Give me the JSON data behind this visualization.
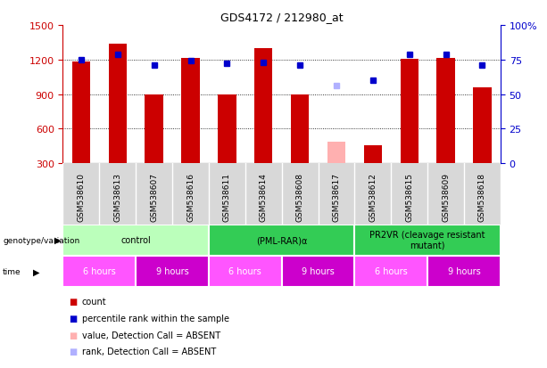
{
  "title": "GDS4172 / 212980_at",
  "samples": [
    "GSM538610",
    "GSM538613",
    "GSM538607",
    "GSM538616",
    "GSM538611",
    "GSM538614",
    "GSM538608",
    "GSM538617",
    "GSM538612",
    "GSM538615",
    "GSM538609",
    "GSM538618"
  ],
  "counts": [
    1185,
    1340,
    895,
    1210,
    895,
    1300,
    895,
    490,
    460,
    1205,
    1210,
    960
  ],
  "count_absent": [
    false,
    false,
    false,
    false,
    false,
    false,
    false,
    true,
    false,
    false,
    false,
    false
  ],
  "ranks": [
    75,
    79,
    71,
    74,
    72,
    73,
    71,
    56,
    60,
    79,
    79,
    71
  ],
  "rank_absent": [
    false,
    false,
    false,
    false,
    false,
    false,
    false,
    true,
    false,
    false,
    false,
    false
  ],
  "ylim_left": [
    300,
    1500
  ],
  "ylim_right": [
    0,
    100
  ],
  "yticks_left": [
    300,
    600,
    900,
    1200,
    1500
  ],
  "yticks_right": [
    0,
    25,
    50,
    75,
    100
  ],
  "gridlines": [
    600,
    900,
    1200
  ],
  "bar_color": "#cc0000",
  "bar_color_absent": "#ffb0b0",
  "rank_color": "#0000cc",
  "rank_color_absent": "#b0b0ff",
  "plot_bg": "#ffffff",
  "sample_bg": "#d8d8d8",
  "genotype_groups": [
    {
      "label": "control",
      "start": 0,
      "end": 4,
      "color": "#bbffbb"
    },
    {
      "label": "(PML-RAR)α",
      "start": 4,
      "end": 8,
      "color": "#33cc55"
    },
    {
      "label": "PR2VR (cleavage resistant\nmutant)",
      "start": 8,
      "end": 12,
      "color": "#33cc55"
    }
  ],
  "time_groups": [
    {
      "label": "6 hours",
      "start": 0,
      "end": 2,
      "color": "#ff55ff"
    },
    {
      "label": "9 hours",
      "start": 2,
      "end": 4,
      "color": "#cc00cc"
    },
    {
      "label": "6 hours",
      "start": 4,
      "end": 6,
      "color": "#ff55ff"
    },
    {
      "label": "9 hours",
      "start": 6,
      "end": 8,
      "color": "#cc00cc"
    },
    {
      "label": "6 hours",
      "start": 8,
      "end": 10,
      "color": "#ff55ff"
    },
    {
      "label": "9 hours",
      "start": 10,
      "end": 12,
      "color": "#cc00cc"
    }
  ],
  "left_axis_color": "#cc0000",
  "right_axis_color": "#0000cc",
  "bar_width": 0.5
}
